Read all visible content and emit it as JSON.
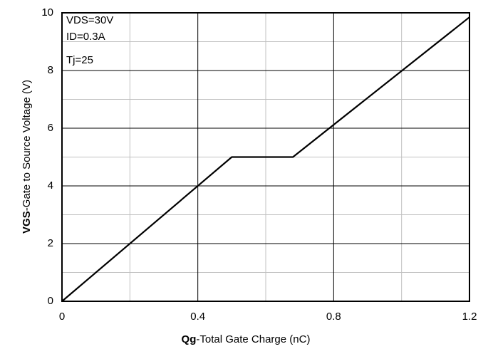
{
  "chart_data": {
    "type": "line",
    "x_label_bold": "Qg",
    "x_label_rest": "-Total Gate Charge (nC)",
    "y_label_bold": "VGS",
    "y_label_rest": "-Gate to Source Voltage (V)",
    "annotations": [
      "VDS=30V",
      "ID=0.3A",
      "Tj=25"
    ],
    "x": [
      0,
      0.5,
      0.68,
      1.2
    ],
    "series": [
      {
        "color": "#000000",
        "values": [
          0,
          5,
          5,
          9.85
        ]
      }
    ],
    "xlim": [
      0,
      1.2
    ],
    "xticks": [
      0,
      0.4,
      0.8,
      1.2
    ],
    "minor_xticks": [
      0.2,
      0.6,
      1.0
    ],
    "ylim": [
      0,
      10
    ],
    "yticks": [
      0,
      2,
      4,
      6,
      8,
      10
    ],
    "minor_yticks": [
      1,
      3,
      5,
      7,
      9
    ],
    "grid": true
  }
}
